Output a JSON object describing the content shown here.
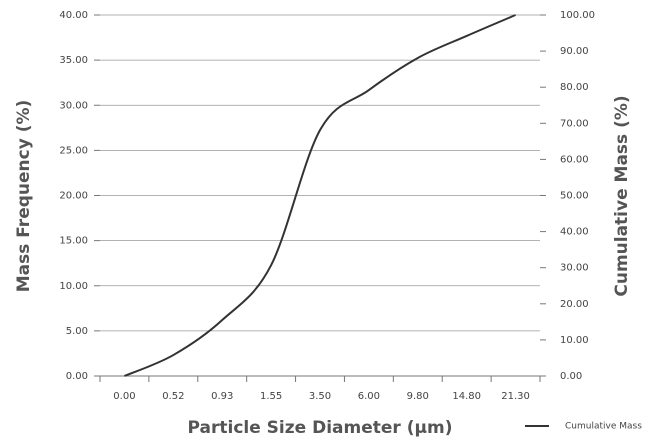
{
  "chart_data": {
    "type": "line",
    "x_label": "Particle Size Diameter (µm)",
    "y_label": "Mass Frequency (%)",
    "y2_label": "Cumulative Mass (%)",
    "categories": [
      "0.00",
      "0.52",
      "0.93",
      "1.55",
      "3.50",
      "6.00",
      "9.80",
      "14.80",
      "21.30"
    ],
    "series": [
      {
        "name": "Cumulative Mass",
        "color": "#333333",
        "axis": "y2",
        "values": [
          0,
          5.8,
          15.5,
          30.7,
          68.1,
          79.2,
          88.1,
          94.2,
          100
        ]
      }
    ],
    "ylim": [
      0,
      40
    ],
    "yticks": [
      {
        "value": 0,
        "label": "0.00"
      },
      {
        "value": 5,
        "label": "5.00"
      },
      {
        "value": 10,
        "label": "10.00"
      },
      {
        "value": 15,
        "label": "15.00"
      },
      {
        "value": 20,
        "label": "20.00"
      },
      {
        "value": 25,
        "label": "25.00"
      },
      {
        "value": 30,
        "label": "30.00"
      },
      {
        "value": 35,
        "label": "35.00"
      },
      {
        "value": 40,
        "label": "40.00"
      }
    ],
    "y2lim": [
      0,
      100
    ],
    "y2ticks": [
      {
        "value": 0,
        "label": "0.00"
      },
      {
        "value": 10,
        "label": "10.00"
      },
      {
        "value": 20,
        "label": "20.00"
      },
      {
        "value": 30,
        "label": "30.00"
      },
      {
        "value": 40,
        "label": "40.00"
      },
      {
        "value": 50,
        "label": "50.00"
      },
      {
        "value": 60,
        "label": "60.00"
      },
      {
        "value": 70,
        "label": "70.00"
      },
      {
        "value": 80,
        "label": "80.00"
      },
      {
        "value": 90,
        "label": "90.00"
      },
      {
        "value": 100,
        "label": "100.00"
      }
    ],
    "grid": true,
    "legend": "bottom-right"
  }
}
